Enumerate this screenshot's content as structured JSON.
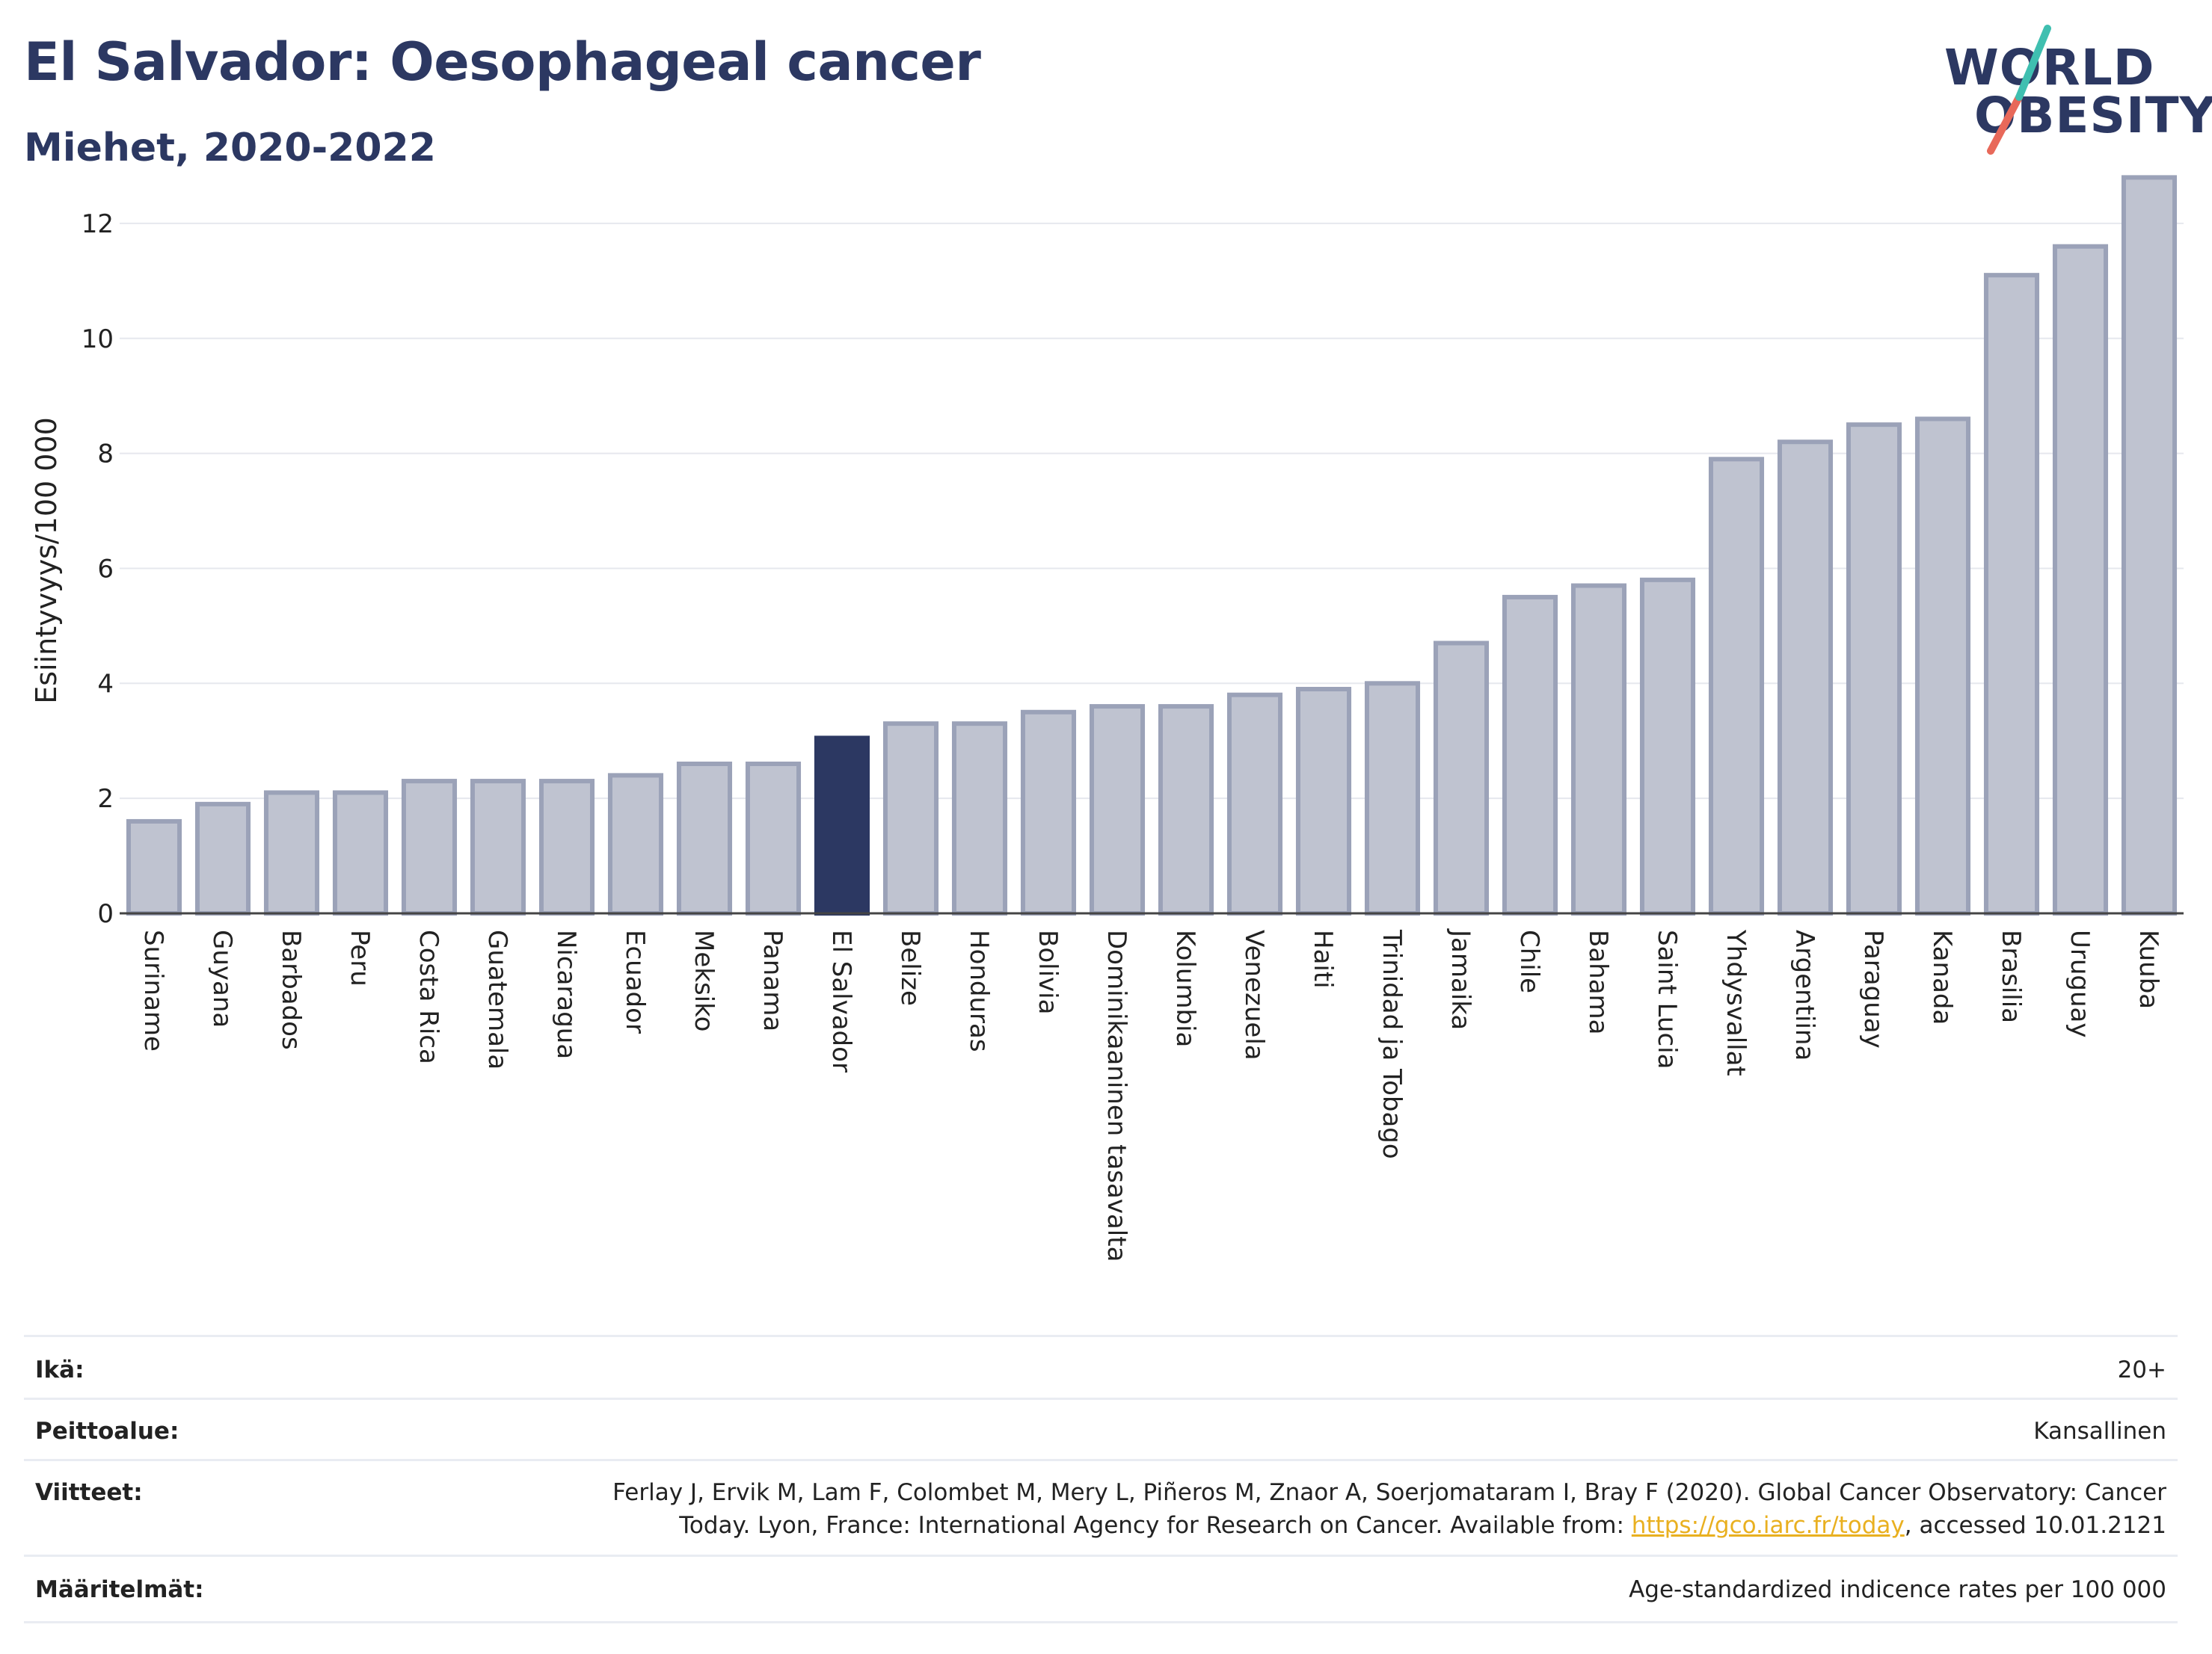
{
  "header": {
    "title": "El Salvador: Oesophageal cancer",
    "subtitle": "Miehet, 2020-2022",
    "logo_line1": "WORLD",
    "logo_line2": "OBESITY"
  },
  "colors": {
    "title": "#2c3862",
    "bar_default": "#bfc3d0",
    "bar_default_stroke": "#9ba2b8",
    "bar_highlight": "#2c3862",
    "logo_slash_top": "#3fbfb0",
    "logo_slash_bottom": "#e8695a",
    "link": "#e9b020"
  },
  "chart_data": {
    "type": "bar",
    "title": "El Salvador: Oesophageal cancer",
    "subtitle": "Miehet, 2020-2022",
    "ylabel": "Esiintyvyys/100 000",
    "xlabel": "",
    "ylim": [
      0,
      13
    ],
    "yticks": [
      0,
      2,
      4,
      6,
      8,
      10,
      12
    ],
    "grid": true,
    "highlight": "El Salvador",
    "categories": [
      "Suriname",
      "Guyana",
      "Barbados",
      "Peru",
      "Costa Rica",
      "Guatemala",
      "Nicaragua",
      "Ecuador",
      "Meksiko",
      "Panama",
      "El Salvador",
      "Belize",
      "Honduras",
      "Bolivia",
      "Dominikaaninen tasavalta",
      "Kolumbia",
      "Venezuela",
      "Haiti",
      "Trinidad ja Tobago",
      "Jamaika",
      "Chile",
      "Bahama",
      "Saint Lucia",
      "Yhdysvallat",
      "Argentiina",
      "Paraguay",
      "Kanada",
      "Brasilia",
      "Uruguay",
      "Kuuba"
    ],
    "values": [
      1.6,
      1.9,
      2.1,
      2.1,
      2.3,
      2.3,
      2.3,
      2.4,
      2.6,
      2.6,
      3.05,
      3.3,
      3.3,
      3.5,
      3.6,
      3.6,
      3.8,
      3.9,
      4.0,
      4.7,
      5.5,
      5.7,
      5.8,
      7.9,
      8.2,
      8.5,
      8.6,
      11.1,
      11.6,
      12.8
    ]
  },
  "footer": {
    "age_label": "Ikä:",
    "age_value": "20+",
    "coverage_label": "Peittoalue:",
    "coverage_value": "Kansallinen",
    "refs_label": "Viitteet:",
    "refs_line1": "Ferlay J, Ervik M, Lam F, Colombet M, Mery L, Piñeros M, Znaor A, Soerjomataram I, Bray F (2020). Global Cancer Observatory: Cancer",
    "refs_line2_pre": "Today. Lyon, France: International Agency for Research on Cancer. Available from: ",
    "refs_link": "https://gco.iarc.fr/today",
    "refs_line2_post": ", accessed 10.01.2121",
    "defs_label": "Määritelmät:",
    "defs_value": "Age-standardized indicence rates per 100 000"
  }
}
